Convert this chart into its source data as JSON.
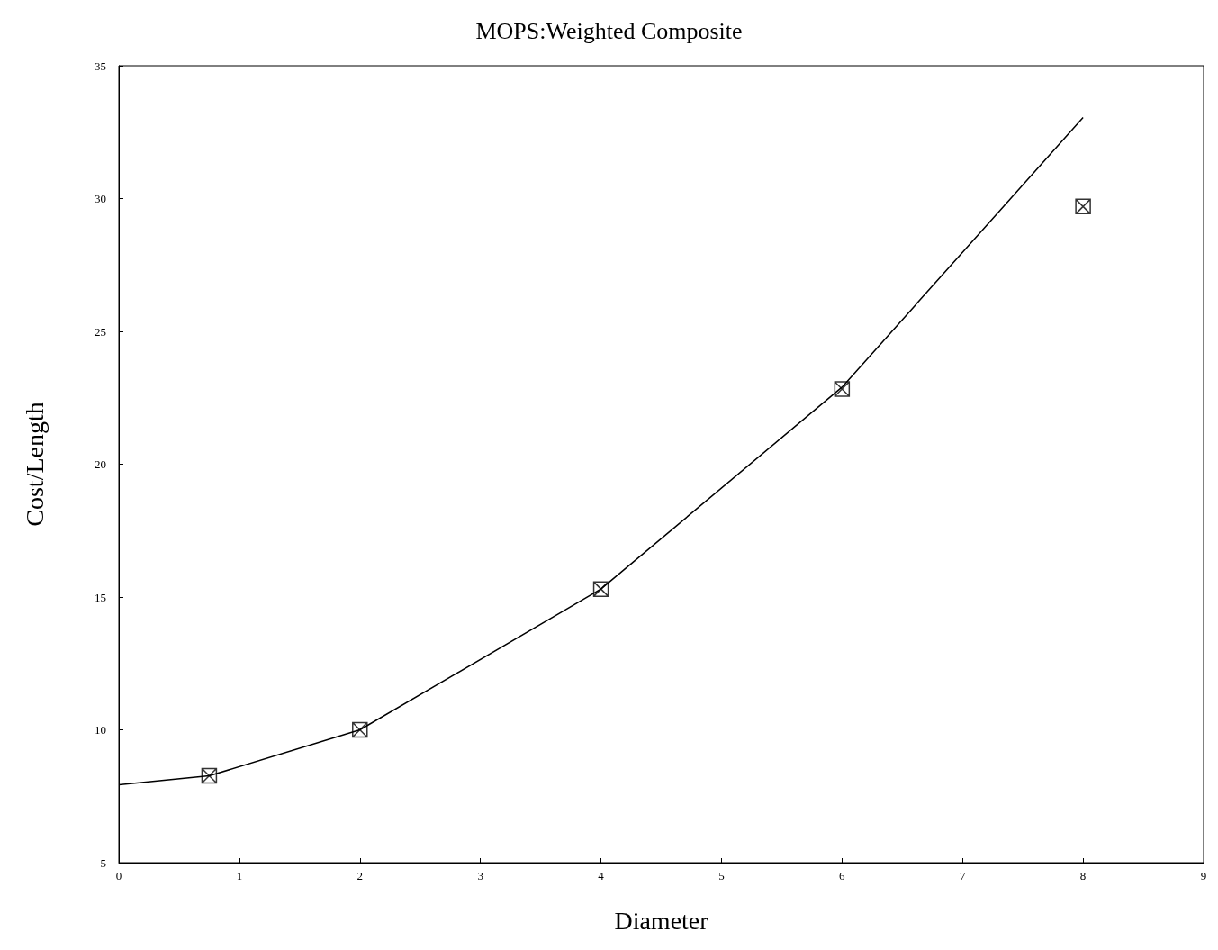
{
  "chart_data": {
    "type": "line",
    "title": "MOPS:Weighted Composite",
    "xlabel": "Diameter",
    "ylabel": "Cost/Length",
    "xlim": [
      0,
      9
    ],
    "xticks": [
      0,
      1,
      2,
      3,
      4,
      5,
      6,
      7,
      8,
      9
    ],
    "ylim": [
      5,
      35
    ],
    "yticks": [
      5,
      10,
      15,
      20,
      25,
      30,
      35
    ],
    "grid": false,
    "series": [
      {
        "color": "#000000",
        "marker": "none",
        "x": [
          0,
          0.75,
          2,
          4,
          6,
          8
        ],
        "values": [
          7.93,
          8.27,
          10,
          15.3,
          22.9,
          33.05
        ]
      },
      {
        "type": "scatter",
        "color": "#000000",
        "marker": "cross",
        "x": [
          0.75,
          2,
          4,
          6,
          8
        ],
        "values": [
          8.27,
          10,
          15.3,
          22.83,
          29.7
        ]
      }
    ]
  }
}
